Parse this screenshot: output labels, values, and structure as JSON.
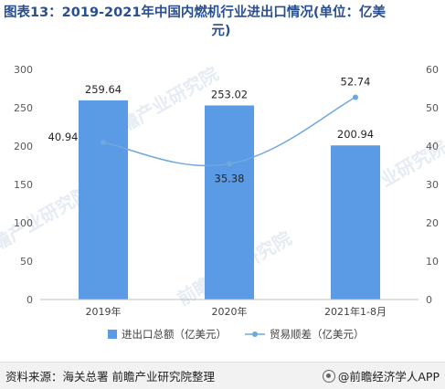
{
  "title": {
    "line1": "图表13：2019-2021年中国内燃机行业进出口情况(单位：亿美",
    "line2": "元)"
  },
  "watermark": "前瞻产业研究院",
  "source": "资料来源：海关总署 前瞻产业研究院整理",
  "brand": "@前瞻经济学人APP",
  "chart_data": {
    "type": "bar",
    "categories": [
      "2019年",
      "2020年",
      "2021年1-8月"
    ],
    "series": [
      {
        "name": "进出口总额（亿美元）",
        "type": "bar",
        "axis": "left",
        "values": [
          259.64,
          253.02,
          200.94
        ],
        "labels": [
          "259.64",
          "253.02",
          "200.94"
        ],
        "color": "#5b9be6"
      },
      {
        "name": "贸易顺差（亿美元）",
        "type": "line",
        "axis": "right",
        "values": [
          40.94,
          35.38,
          52.74
        ],
        "labels": [
          "40.94",
          "35.38",
          "52.74"
        ],
        "color": "#6ea8dd"
      }
    ],
    "ylim_left": [
      0,
      300
    ],
    "yticks_left": [
      "0",
      "50",
      "100",
      "150",
      "200",
      "250",
      "300"
    ],
    "ylim_right": [
      0,
      60
    ],
    "yticks_right": [
      "0",
      "10",
      "20",
      "30",
      "40",
      "50",
      "60"
    ],
    "grid": false,
    "legend": "bottom"
  }
}
